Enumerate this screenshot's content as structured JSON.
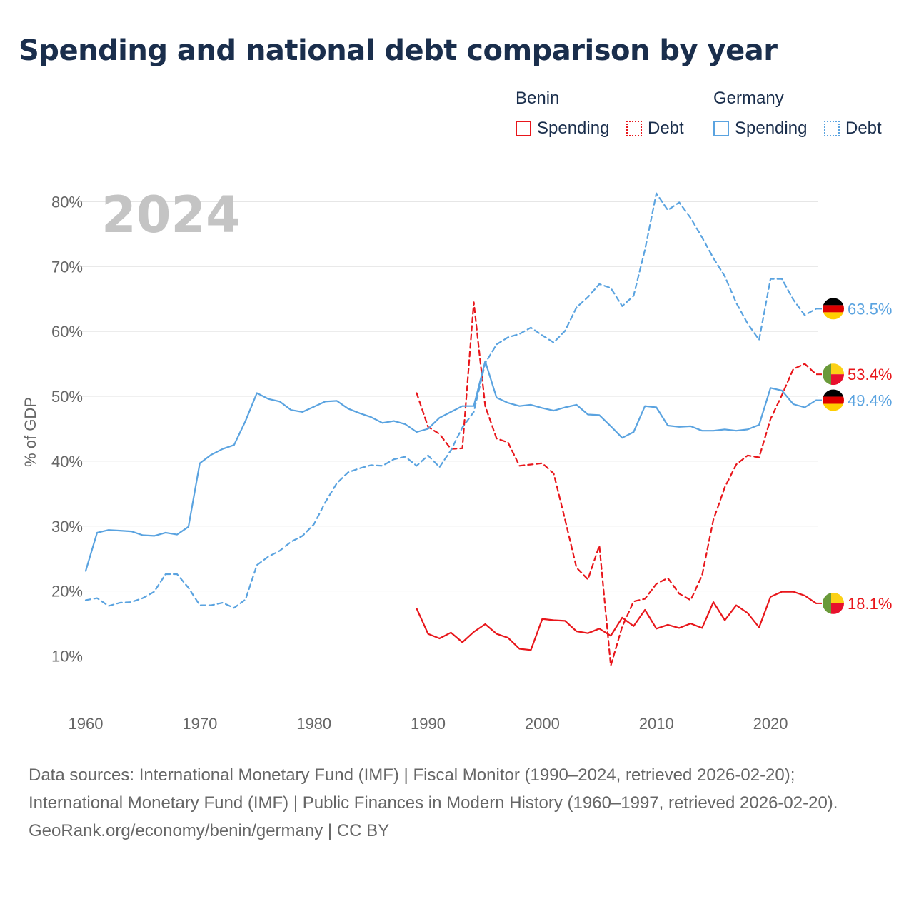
{
  "title": "Spending and national debt comparison by year",
  "legend": {
    "groups": [
      {
        "name": "Benin",
        "items": [
          {
            "label": "Spending",
            "style": "solid",
            "color": "#e8161b"
          },
          {
            "label": "Debt",
            "style": "dotted",
            "color": "#e8161b"
          }
        ]
      },
      {
        "name": "Germany",
        "items": [
          {
            "label": "Spending",
            "style": "solid",
            "color": "#5aa3e0"
          },
          {
            "label": "Debt",
            "style": "dotted",
            "color": "#5aa3e0"
          }
        ]
      }
    ]
  },
  "footer": {
    "sources": "Data sources: International Monetary Fund (IMF) | Fiscal Monitor (1990–2024, retrieved 2026-02-20); International Monetary Fund (IMF) | Public Finances in Modern History (1960–1997, retrieved 2026-02-20).",
    "credit": "GeoRank.org/economy/benin/germany | CC BY"
  },
  "colors": {
    "benin": "#e8161b",
    "germany": "#5aa3e0",
    "grid": "#e6e6e6",
    "axis_text": "#666666",
    "year_watermark": "#c4c4c4"
  },
  "chart_data": {
    "type": "line",
    "title": "Spending and national debt comparison by year",
    "year_label": "2024",
    "xlabel": "",
    "ylabel": "% of GDP",
    "xlim": [
      1960,
      2024
    ],
    "ylim": [
      3,
      85
    ],
    "x_ticks": [
      1960,
      1970,
      1980,
      1990,
      2000,
      2010,
      2020
    ],
    "y_ticks": [
      10,
      20,
      30,
      40,
      50,
      60,
      70,
      80
    ],
    "y_tick_labels": [
      "10%",
      "20%",
      "30%",
      "40%",
      "50%",
      "60%",
      "70%",
      "80%"
    ],
    "grid": true,
    "series": [
      {
        "name": "Benin Spending",
        "country": "Benin",
        "metric": "Spending",
        "style": "solid",
        "color": "#e8161b",
        "x": [
          1989,
          1990,
          1991,
          1992,
          1993,
          1994,
          1995,
          1996,
          1997,
          1998,
          1999,
          2000,
          2001,
          2002,
          2003,
          2004,
          2005,
          2006,
          2007,
          2008,
          2009,
          2010,
          2011,
          2012,
          2013,
          2014,
          2015,
          2016,
          2017,
          2018,
          2019,
          2020,
          2021,
          2022,
          2023,
          2024
        ],
        "values": [
          17.3,
          13.4,
          12.7,
          13.6,
          12.1,
          13.7,
          14.9,
          13.4,
          12.8,
          11.1,
          10.9,
          15.7,
          15.5,
          15.4,
          13.8,
          13.5,
          14.2,
          13.1,
          15.9,
          14.6,
          17.1,
          14.2,
          14.8,
          14.3,
          15.0,
          14.3,
          18.3,
          15.5,
          17.8,
          16.6,
          14.4,
          19.1,
          19.9,
          19.9,
          19.3,
          18.1
        ],
        "end_label": "18.1%"
      },
      {
        "name": "Benin Debt",
        "country": "Benin",
        "metric": "Debt",
        "style": "dashed",
        "color": "#e8161b",
        "x": [
          1989,
          1990,
          1991,
          1992,
          1993,
          1994,
          1995,
          1996,
          1997,
          1998,
          1999,
          2000,
          2001,
          2002,
          2003,
          2004,
          2005,
          2006,
          2007,
          2008,
          2009,
          2010,
          2011,
          2012,
          2013,
          2014,
          2015,
          2016,
          2017,
          2018,
          2019,
          2020,
          2021,
          2022,
          2023,
          2024
        ],
        "values": [
          50.5,
          45.3,
          44.2,
          41.9,
          42.0,
          64.5,
          48.5,
          43.5,
          42.9,
          39.3,
          39.5,
          39.7,
          38.1,
          31.0,
          23.6,
          21.8,
          27.0,
          8.5,
          14.5,
          18.4,
          18.8,
          21.1,
          22.0,
          19.6,
          18.6,
          22.4,
          31.0,
          36.0,
          39.5,
          40.9,
          40.6,
          46.5,
          50.2,
          54.2,
          55.0,
          53.4
        ],
        "end_label": "53.4%"
      },
      {
        "name": "Germany Spending",
        "country": "Germany",
        "metric": "Spending",
        "style": "solid",
        "color": "#5aa3e0",
        "x": [
          1960,
          1961,
          1962,
          1963,
          1964,
          1965,
          1966,
          1967,
          1968,
          1969,
          1970,
          1971,
          1972,
          1973,
          1974,
          1975,
          1976,
          1977,
          1978,
          1979,
          1980,
          1981,
          1982,
          1983,
          1984,
          1985,
          1986,
          1987,
          1988,
          1989,
          1990,
          1991,
          1992,
          1993,
          1994,
          1995,
          1996,
          1997,
          1998,
          1999,
          2000,
          2001,
          2002,
          2003,
          2004,
          2005,
          2006,
          2007,
          2008,
          2009,
          2010,
          2011,
          2012,
          2013,
          2014,
          2015,
          2016,
          2017,
          2018,
          2019,
          2020,
          2021,
          2022,
          2023,
          2024
        ],
        "values": [
          23.1,
          29.0,
          29.4,
          29.3,
          29.2,
          28.6,
          28.5,
          29.0,
          28.7,
          29.9,
          39.7,
          41.0,
          41.9,
          42.5,
          46.2,
          50.5,
          49.6,
          49.2,
          47.9,
          47.6,
          48.4,
          49.2,
          49.3,
          48.1,
          47.4,
          46.8,
          45.9,
          46.2,
          45.7,
          44.5,
          45.0,
          46.7,
          47.6,
          48.5,
          48.5,
          55.4,
          49.8,
          49.0,
          48.5,
          48.7,
          48.2,
          47.8,
          48.3,
          48.7,
          47.2,
          47.1,
          45.4,
          43.6,
          44.5,
          48.5,
          48.3,
          45.5,
          45.3,
          45.4,
          44.7,
          44.7,
          44.9,
          44.7,
          44.9,
          45.6,
          51.3,
          50.9,
          48.8,
          48.3,
          49.4
        ],
        "end_label": "49.4%"
      },
      {
        "name": "Germany Debt",
        "country": "Germany",
        "metric": "Debt",
        "style": "dashed",
        "color": "#5aa3e0",
        "x": [
          1960,
          1961,
          1962,
          1963,
          1964,
          1965,
          1966,
          1967,
          1968,
          1969,
          1970,
          1971,
          1972,
          1973,
          1974,
          1975,
          1976,
          1977,
          1978,
          1979,
          1980,
          1981,
          1982,
          1983,
          1984,
          1985,
          1986,
          1987,
          1988,
          1989,
          1990,
          1991,
          1992,
          1993,
          1994,
          1995,
          1996,
          1997,
          1998,
          1999,
          2000,
          2001,
          2002,
          2003,
          2004,
          2005,
          2006,
          2007,
          2008,
          2009,
          2010,
          2011,
          2012,
          2013,
          2014,
          2015,
          2016,
          2017,
          2018,
          2019,
          2020,
          2021,
          2022,
          2023,
          2024
        ],
        "values": [
          18.6,
          18.9,
          17.7,
          18.2,
          18.3,
          18.9,
          19.9,
          22.6,
          22.6,
          20.5,
          17.8,
          17.8,
          18.2,
          17.4,
          18.7,
          24.0,
          25.3,
          26.2,
          27.6,
          28.5,
          30.3,
          33.7,
          36.6,
          38.3,
          38.9,
          39.4,
          39.3,
          40.3,
          40.7,
          39.3,
          40.9,
          39.1,
          41.7,
          45.2,
          47.6,
          55.1,
          58.0,
          59.1,
          59.6,
          60.6,
          59.4,
          58.3,
          60.1,
          63.7,
          65.3,
          67.3,
          66.7,
          63.9,
          65.5,
          72.6,
          81.3,
          78.7,
          79.9,
          77.5,
          74.5,
          71.3,
          68.5,
          64.4,
          61.2,
          58.7,
          68.1,
          68.1,
          64.9,
          62.5,
          63.5
        ],
        "end_label": "63.5%"
      }
    ]
  }
}
